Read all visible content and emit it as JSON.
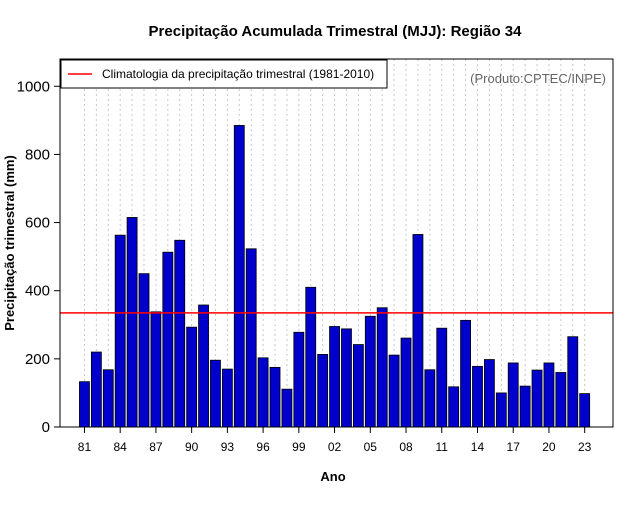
{
  "chart_data": {
    "type": "bar",
    "title": "Precipitação Acumulada Trimestral (MJJ): Região 34",
    "xlabel": "Ano",
    "ylabel": "Precipitação trimestral (mm)",
    "ylim": [
      0,
      1080
    ],
    "yticks": [
      0,
      200,
      400,
      600,
      800,
      1000
    ],
    "credit": "(Produto:CPTEC/INPE)",
    "colors": {
      "bar": "#0000CC",
      "climatology": "#FF0000",
      "grid": "#C8C8C8"
    },
    "years": [
      1981,
      1982,
      1983,
      1984,
      1985,
      1986,
      1987,
      1988,
      1989,
      1990,
      1991,
      1992,
      1993,
      1994,
      1995,
      1996,
      1997,
      1998,
      1999,
      2000,
      2001,
      2002,
      2003,
      2004,
      2005,
      2006,
      2007,
      2008,
      2009,
      2010,
      2011,
      2012,
      2013,
      2014,
      2015,
      2016,
      2017,
      2018,
      2019,
      2020,
      2021,
      2022,
      2023
    ],
    "values": [
      133,
      220,
      168,
      563,
      615,
      450,
      338,
      513,
      548,
      293,
      358,
      196,
      170,
      885,
      523,
      203,
      175,
      111,
      278,
      410,
      213,
      295,
      288,
      242,
      325,
      350,
      211,
      261,
      565,
      168,
      290,
      118,
      313,
      178,
      198,
      100,
      188,
      120,
      167,
      188,
      160,
      265,
      98
    ],
    "xtick_labels": [
      "81",
      "84",
      "87",
      "90",
      "93",
      "96",
      "99",
      "02",
      "05",
      "08",
      "11",
      "14",
      "17",
      "20",
      "23"
    ],
    "xtick_years": [
      1981,
      1984,
      1987,
      1990,
      1993,
      1996,
      1999,
      2002,
      2005,
      2008,
      2011,
      2014,
      2017,
      2020,
      2023
    ],
    "climatology": {
      "label": "Climatologia da precipitação trimestral (1981-2010)",
      "value": 335
    },
    "legend_position": "top-left"
  }
}
